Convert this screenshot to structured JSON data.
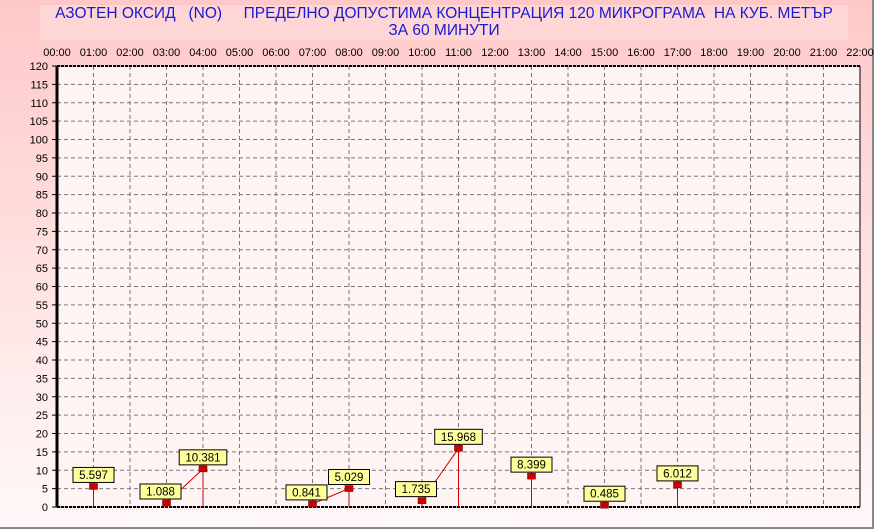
{
  "chart_data": {
    "type": "line",
    "title": "АЗОТЕН ОКСИД   (NO)     ПРЕДЕЛНО ДОПУСТИМА КОНЦЕНТРАЦИЯ 120 МИКРОГРАМА  НА КУБ. МЕТЪР",
    "subtitle": "ЗА 60 МИНУТИ",
    "xlabel": "",
    "ylabel": "",
    "x_ticks": [
      "00:00",
      "01:00",
      "02:00",
      "03:00",
      "04:00",
      "05:00",
      "06:00",
      "07:00",
      "08:00",
      "09:00",
      "10:00",
      "11:00",
      "12:00",
      "13:00",
      "14:00",
      "15:00",
      "16:00",
      "17:00",
      "18:00",
      "19:00",
      "20:00",
      "21:00",
      "22:00"
    ],
    "ylim": [
      0,
      120
    ],
    "y_step": 5,
    "grid": true,
    "points": [
      {
        "x": "01:00",
        "y": 5.597,
        "label": "5.597"
      },
      {
        "x": "03:00",
        "y": 1.088,
        "label": "1.088"
      },
      {
        "x": "04:00",
        "y": 10.381,
        "label": "10.381"
      },
      {
        "x": "07:00",
        "y": 0.841,
        "label": "0.841"
      },
      {
        "x": "08:00",
        "y": 5.029,
        "label": "5.029"
      },
      {
        "x": "10:00",
        "y": 1.735,
        "label": "1.735"
      },
      {
        "x": "11:00",
        "y": 15.968,
        "label": "15.968"
      },
      {
        "x": "13:00",
        "y": 8.399,
        "label": "8.399"
      },
      {
        "x": "15:00",
        "y": 0.485,
        "label": "0.485"
      },
      {
        "x": "17:00",
        "y": 6.012,
        "label": "6.012"
      }
    ],
    "colors": {
      "line": "#cc0000",
      "marker": "#cc0000",
      "label_bg": "#ffff99",
      "title": "#1a1ad0"
    }
  }
}
